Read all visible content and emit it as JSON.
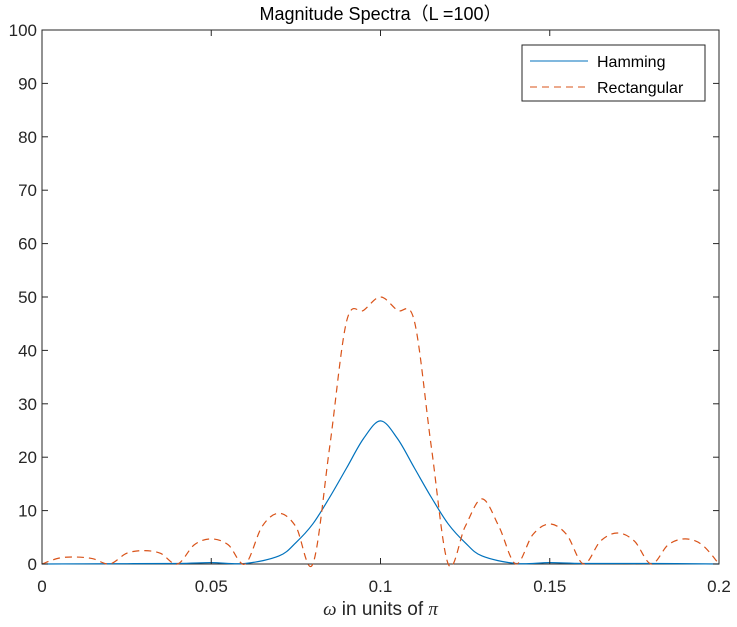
{
  "chart_data": {
    "type": "line",
    "title": "Magnitude Spectra（L =100）",
    "xlabel": {
      "symbol": "ω",
      "middle": " in units of ",
      "pi": "π"
    },
    "ylabel": "",
    "xlim": [
      0,
      0.2
    ],
    "ylim": [
      0,
      100
    ],
    "xticks": [
      0,
      0.05,
      0.1,
      0.15,
      0.2
    ],
    "xtick_labels": [
      "0",
      "0.05",
      "0.1",
      "0.15",
      "0.2"
    ],
    "yticks": [
      0,
      10,
      20,
      30,
      40,
      50,
      60,
      70,
      80,
      90,
      100
    ],
    "ytick_labels": [
      "0",
      "10",
      "20",
      "30",
      "40",
      "50",
      "60",
      "70",
      "80",
      "90",
      "100"
    ],
    "grid": false,
    "legend_position": "top-right",
    "series": [
      {
        "name": "Hamming",
        "color": "#0072BD",
        "style": "solid",
        "x": [
          0,
          0.02,
          0.04,
          0.05,
          0.06,
          0.07,
          0.075,
          0.08,
          0.085,
          0.09,
          0.095,
          0.1,
          0.105,
          0.11,
          0.115,
          0.12,
          0.125,
          0.13,
          0.14,
          0.15,
          0.16,
          0.18,
          0.2
        ],
        "y": [
          0,
          0.05,
          0.1,
          0.25,
          0.1,
          1.5,
          4.0,
          7.5,
          12.5,
          18.0,
          23.5,
          26.8,
          23.5,
          18.0,
          12.5,
          7.5,
          4.0,
          1.5,
          0.1,
          0.25,
          0.1,
          0.1,
          0
        ]
      },
      {
        "name": "Rectangular",
        "color": "#D95319",
        "style": "dashed",
        "x": [
          0,
          0.005,
          0.01,
          0.015,
          0.02,
          0.025,
          0.03,
          0.035,
          0.04,
          0.045,
          0.05,
          0.055,
          0.06,
          0.065,
          0.07,
          0.075,
          0.08,
          0.085,
          0.09,
          0.095,
          0.1,
          0.105,
          0.11,
          0.115,
          0.12,
          0.125,
          0.13,
          0.135,
          0.14,
          0.145,
          0.15,
          0.155,
          0.16,
          0.165,
          0.17,
          0.175,
          0.18,
          0.185,
          0.19,
          0.195,
          0.2
        ],
        "y": [
          0,
          1.1,
          1.3,
          1.0,
          0,
          2.0,
          2.5,
          2.0,
          0,
          3.6,
          4.7,
          3.6,
          0,
          7.0,
          9.5,
          7.0,
          0,
          22.0,
          45.5,
          47.5,
          50.0,
          47.5,
          45.5,
          22.0,
          0,
          7.0,
          12.2,
          7.0,
          0,
          5.5,
          7.5,
          5.5,
          0,
          4.3,
          5.8,
          4.3,
          0,
          3.6,
          4.7,
          3.6,
          0
        ]
      }
    ]
  }
}
